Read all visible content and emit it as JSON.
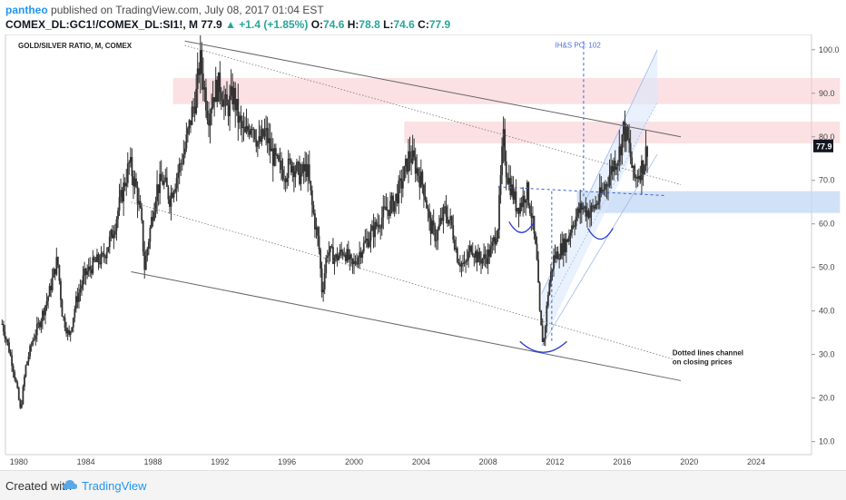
{
  "header": {
    "author": "pantheo",
    "published": "published on TradingView.com, July 08, 2017 01:04 EST",
    "symbol": "COMEX_DL:GC1!/COMEX_DL:SI1!, M",
    "last": "77.9",
    "change": "+1.4 (+1.85%)",
    "o_label": "O:",
    "o": "74.6",
    "h_label": "H:",
    "h": "78.8",
    "l_label": "L:",
    "l": "74.6",
    "c_label": "C:",
    "c": "77.9"
  },
  "footer": {
    "created": "Created with",
    "brand": "TradingView"
  },
  "chart_data": {
    "type": "candlestick",
    "title": "GOLD/SILVER RATIO, M, COMEX",
    "xlabel": "",
    "ylabel": "",
    "x_ticks": [
      "1980",
      "1984",
      "1988",
      "1992",
      "1996",
      "2000",
      "2004",
      "2008",
      "2012",
      "2016",
      "2020",
      "2024"
    ],
    "x_tick_values": [
      1980,
      1984,
      1988,
      1992,
      1996,
      2000,
      2004,
      2008,
      2012,
      2016,
      2020,
      2024
    ],
    "y_ticks": [
      "10.0",
      "20.0",
      "30.0",
      "40.0",
      "50.0",
      "60.0",
      "70.0",
      "80.0",
      "90.0",
      "100.0"
    ],
    "y_tick_values": [
      10,
      20,
      30,
      40,
      50,
      60,
      70,
      80,
      90,
      100
    ],
    "xlim": [
      1979.2,
      2027.3
    ],
    "ylim": [
      7,
      103.5
    ],
    "last_price_label": "77.9",
    "price_path": [
      [
        1979.0,
        37
      ],
      [
        1979.3,
        33
      ],
      [
        1979.6,
        28
      ],
      [
        1979.9,
        22
      ],
      [
        1980.1,
        17
      ],
      [
        1980.4,
        27
      ],
      [
        1980.8,
        33
      ],
      [
        1981.3,
        38
      ],
      [
        1981.8,
        44
      ],
      [
        1982.3,
        52
      ],
      [
        1982.6,
        39
      ],
      [
        1983.0,
        34
      ],
      [
        1983.4,
        42
      ],
      [
        1983.9,
        48
      ],
      [
        1984.5,
        51
      ],
      [
        1985.0,
        52
      ],
      [
        1985.6,
        58
      ],
      [
        1986.1,
        66
      ],
      [
        1986.6,
        74
      ],
      [
        1987.0,
        68
      ],
      [
        1987.3,
        61
      ],
      [
        1987.5,
        50
      ],
      [
        1987.8,
        58
      ],
      [
        1988.2,
        68
      ],
      [
        1988.6,
        70
      ],
      [
        1989.0,
        66
      ],
      [
        1989.5,
        72
      ],
      [
        1989.9,
        77
      ],
      [
        1990.3,
        85
      ],
      [
        1990.6,
        90
      ],
      [
        1990.8,
        98
      ],
      [
        1991.0,
        93
      ],
      [
        1991.3,
        85
      ],
      [
        1991.6,
        90
      ],
      [
        1992.0,
        92
      ],
      [
        1992.4,
        86
      ],
      [
        1992.8,
        90
      ],
      [
        1993.1,
        84
      ],
      [
        1993.5,
        80
      ],
      [
        1993.9,
        84
      ],
      [
        1994.3,
        78
      ],
      [
        1994.7,
        81
      ],
      [
        1995.1,
        76
      ],
      [
        1995.5,
        73
      ],
      [
        1995.9,
        72
      ],
      [
        1996.3,
        74
      ],
      [
        1996.8,
        71
      ],
      [
        1997.2,
        73
      ],
      [
        1997.5,
        64
      ],
      [
        1997.9,
        55
      ],
      [
        1998.1,
        44
      ],
      [
        1998.4,
        54
      ],
      [
        1998.9,
        52
      ],
      [
        1999.4,
        54
      ],
      [
        1999.9,
        50
      ],
      [
        2000.4,
        54
      ],
      [
        2000.9,
        57
      ],
      [
        2001.4,
        60
      ],
      [
        2001.9,
        63
      ],
      [
        2002.4,
        65
      ],
      [
        2002.9,
        70
      ],
      [
        2003.3,
        76
      ],
      [
        2003.6,
        74
      ],
      [
        2003.9,
        71
      ],
      [
        2004.2,
        68
      ],
      [
        2004.5,
        60
      ],
      [
        2004.9,
        57
      ],
      [
        2005.4,
        63
      ],
      [
        2005.8,
        60
      ],
      [
        2006.2,
        52
      ],
      [
        2006.6,
        50
      ],
      [
        2007.0,
        55
      ],
      [
        2007.4,
        52
      ],
      [
        2007.8,
        52
      ],
      [
        2008.2,
        54
      ],
      [
        2008.6,
        60
      ],
      [
        2008.9,
        80
      ],
      [
        2009.1,
        72
      ],
      [
        2009.4,
        68
      ],
      [
        2009.7,
        64
      ],
      [
        2010.0,
        65
      ],
      [
        2010.3,
        68
      ],
      [
        2010.6,
        62
      ],
      [
        2010.9,
        52
      ],
      [
        2011.1,
        38
      ],
      [
        2011.3,
        32
      ],
      [
        2011.6,
        45
      ],
      [
        2011.9,
        52
      ],
      [
        2012.3,
        54
      ],
      [
        2012.7,
        56
      ],
      [
        2013.0,
        60
      ],
      [
        2013.3,
        62
      ],
      [
        2013.6,
        64
      ],
      [
        2013.9,
        63
      ],
      [
        2014.2,
        63
      ],
      [
        2014.5,
        65
      ],
      [
        2014.8,
        67
      ],
      [
        2015.1,
        70
      ],
      [
        2015.5,
        74
      ],
      [
        2015.8,
        76
      ],
      [
        2016.1,
        82
      ],
      [
        2016.4,
        78
      ],
      [
        2016.7,
        70
      ],
      [
        2017.0,
        72
      ],
      [
        2017.3,
        74
      ],
      [
        2017.5,
        77.9
      ]
    ],
    "annotations": {
      "po_label": "IH&S PO: 102",
      "channel_note": [
        "Dotted lines channel",
        "on closing prices"
      ]
    },
    "resistance_zones": [
      [
        87.5,
        93.5
      ],
      [
        78.5,
        83.5
      ]
    ],
    "support_zone": [
      62.5,
      67.5
    ],
    "colors": {
      "zone_red": "#f8c9cc",
      "zone_blue": "#c6daf5",
      "arc": "#2d3bd6",
      "dashed": "#3d5fd6",
      "candle": "#333333"
    }
  }
}
